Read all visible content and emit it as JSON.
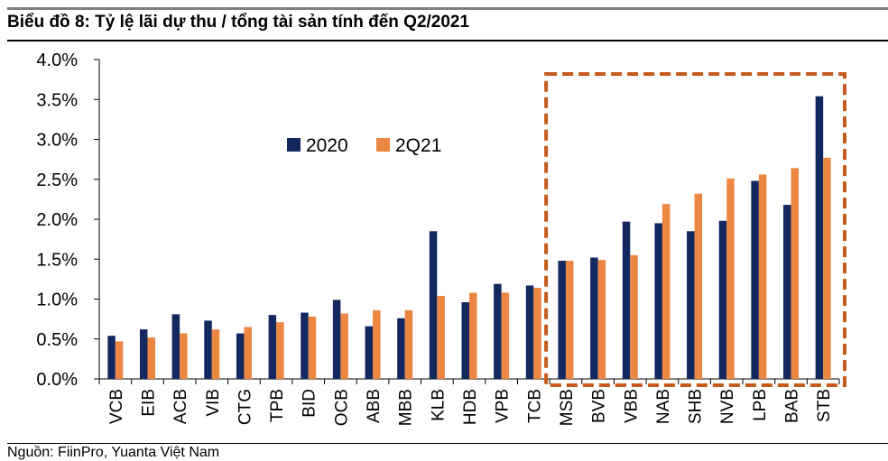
{
  "title": "Biểu đồ 8:  Tỷ lệ lãi dự thu / tổng tài sản tính đến Q2/2021",
  "source": "Nguồn: FiinPro, Yuanta Việt Nam",
  "colors": {
    "s2020": "#12285f",
    "s2q21": "#ec8643",
    "highlight": "#c55a1a",
    "axis": "#000000"
  },
  "chart_data": {
    "type": "bar",
    "title": "Biểu đồ 8:  Tỷ lệ lãi dự thu / tổng tài sản tính đến Q2/2021",
    "xlabel": "",
    "ylabel": "",
    "ylim": [
      0,
      0.04
    ],
    "yticks": [
      "0.0%",
      "0.5%",
      "1.0%",
      "1.5%",
      "2.0%",
      "2.5%",
      "3.0%",
      "3.5%",
      "4.0%"
    ],
    "grid": false,
    "legend_position": "upper-middle",
    "categories": [
      "VCB",
      "EIB",
      "ACB",
      "VIB",
      "CTG",
      "TPB",
      "BID",
      "OCB",
      "ABB",
      "MBB",
      "KLB",
      "HDB",
      "VPB",
      "TCB",
      "MSB",
      "BVB",
      "VBB",
      "NAB",
      "SHB",
      "NVB",
      "LPB",
      "BAB",
      "STB"
    ],
    "series": [
      {
        "name": "2020",
        "values": [
          0.0054,
          0.0062,
          0.0081,
          0.0073,
          0.0057,
          0.008,
          0.0083,
          0.0099,
          0.0066,
          0.0076,
          0.0185,
          0.0096,
          0.0119,
          0.0117,
          0.0148,
          0.0152,
          0.0197,
          0.0195,
          0.0185,
          0.0198,
          0.0248,
          0.0218,
          0.0354
        ]
      },
      {
        "name": "2Q21",
        "values": [
          0.0047,
          0.0052,
          0.0057,
          0.0062,
          0.0065,
          0.0071,
          0.0078,
          0.0082,
          0.0086,
          0.0086,
          0.0104,
          0.0108,
          0.0108,
          0.0114,
          0.0148,
          0.0149,
          0.0155,
          0.0219,
          0.0232,
          0.0251,
          0.0256,
          0.0264,
          0.0277
        ]
      }
    ],
    "highlighted_range": [
      "MSB",
      "STB"
    ]
  }
}
